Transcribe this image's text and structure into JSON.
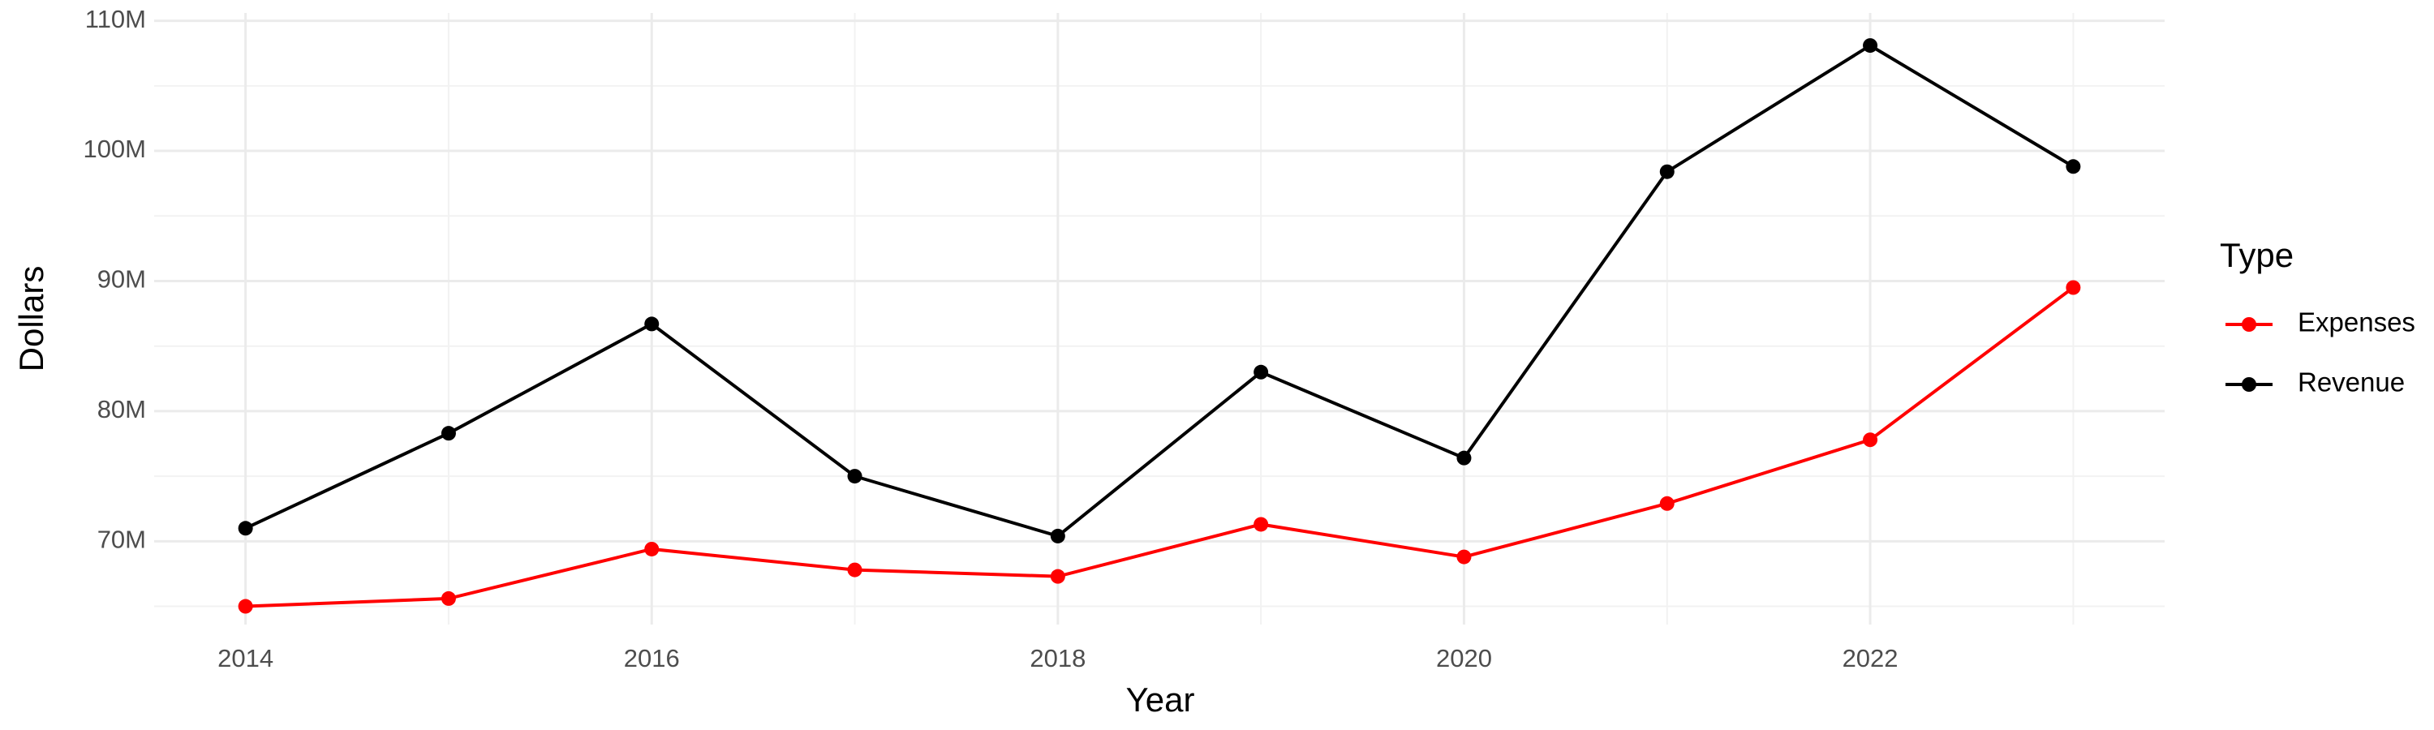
{
  "chart_data": {
    "type": "line",
    "x_label": "Year",
    "y_label": "Dollars",
    "legend_title": "Type",
    "legend_position": "right",
    "x": [
      2014,
      2015,
      2016,
      2017,
      2018,
      2019,
      2020,
      2021,
      2022,
      2023
    ],
    "series": [
      {
        "name": "Expenses",
        "color": "#ff0000",
        "values": [
          65000000,
          65600000,
          69400000,
          67800000,
          67300000,
          71300000,
          68800000,
          72900000,
          77800000,
          89500000
        ]
      },
      {
        "name": "Revenue",
        "color": "#000000",
        "values": [
          71000000,
          78300000,
          86700000,
          75000000,
          70400000,
          83000000,
          76400000,
          98400000,
          108100000,
          98800000
        ]
      }
    ],
    "xlim": [
      2013.55,
      2023.45
    ],
    "xticks": [
      2014,
      2016,
      2018,
      2020,
      2022
    ],
    "minor_xticks": [
      2015,
      2017,
      2019,
      2021,
      2023
    ],
    "ylim": [
      63600000,
      110600000
    ],
    "yticks": [
      {
        "value": 70000000,
        "label": "70M"
      },
      {
        "value": 80000000,
        "label": "80M"
      },
      {
        "value": 90000000,
        "label": "90M"
      },
      {
        "value": 100000000,
        "label": "100M"
      },
      {
        "value": 110000000,
        "label": "110M"
      }
    ],
    "minor_yticks": [
      65000000,
      75000000,
      85000000,
      95000000,
      105000000
    ],
    "grid": true
  }
}
